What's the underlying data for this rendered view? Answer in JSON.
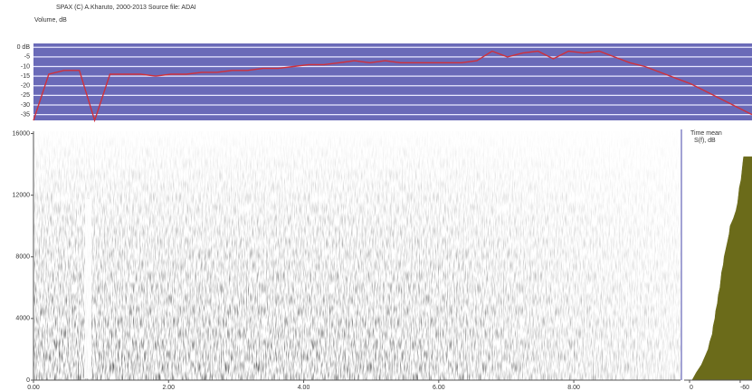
{
  "header": "SPAX  (C)  A.Kharuto,  2000-2013  Source file:  ADAI",
  "chart_data": [
    {
      "type": "line",
      "title": "Volume, dB",
      "color": "#d0303a",
      "values": [
        -38,
        -14,
        -12,
        -12,
        -38,
        -14,
        -14,
        -14,
        -15,
        -14,
        -14,
        -13,
        -13,
        -12,
        -12,
        -11,
        -11,
        -10,
        -9,
        -9,
        -8,
        -7,
        -8,
        -7,
        -8,
        -8,
        -8,
        -8,
        -8,
        -7,
        -2,
        -5,
        -3,
        -2,
        -6,
        -2,
        -3,
        -2,
        -5,
        -8,
        -10,
        -13,
        -16,
        -19,
        -23,
        -27,
        -31,
        -35
      ],
      "ylim": [
        -38,
        2
      ],
      "yticks": [
        {
          "value": 0,
          "label": "0 dB"
        },
        -5,
        -10,
        -15,
        -20,
        -25,
        -30,
        -35
      ]
    },
    {
      "type": "spectrogram",
      "xlim": [
        0,
        9.58
      ],
      "xticks": [
        {
          "value": 0,
          "label": "0.00"
        },
        {
          "value": 2,
          "label": "2.00"
        },
        {
          "value": 4,
          "label": "4.00"
        },
        {
          "value": 6,
          "label": "6.00"
        },
        {
          "value": 8,
          "label": "8.00"
        }
      ],
      "ylim": [
        0,
        16150
      ],
      "yticks": [
        0,
        4000,
        8000,
        12000,
        16000
      ]
    },
    {
      "type": "area",
      "title": "Time mean",
      "xlabel": "S(f), dB",
      "color": "#6b6b1a",
      "y": [
        0,
        500,
        1000,
        1500,
        2000,
        2500,
        3000,
        3500,
        4000,
        4500,
        5000,
        5500,
        6000,
        6500,
        7000,
        7500,
        8000,
        8500,
        9000,
        9500,
        10000,
        10500,
        11000,
        11500,
        12000,
        12500,
        13000,
        13500,
        14000,
        14500
      ],
      "values": [
        -3,
        -8,
        -14,
        -18,
        -22,
        -24,
        -27,
        -28,
        -30,
        -31,
        -33,
        -34,
        -36,
        -37,
        -38,
        -40,
        -41,
        -43,
        -45,
        -47,
        -48,
        -52,
        -55,
        -57,
        -58,
        -59,
        -61,
        -62,
        -63,
        -64
      ],
      "xlim": [
        0,
        -74
      ],
      "xticks": [
        0,
        -60
      ],
      "ylim": [
        0,
        16150
      ]
    }
  ]
}
